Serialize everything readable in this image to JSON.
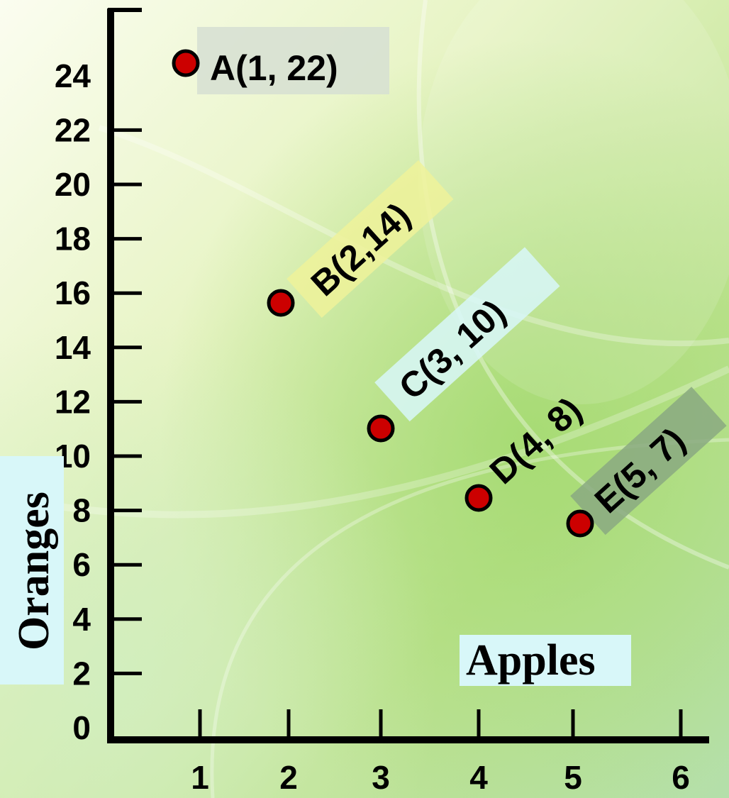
{
  "chart_data": {
    "type": "scatter",
    "xlabel": "Apples",
    "ylabel": "Oranges",
    "x_ticks": [
      1,
      2,
      3,
      4,
      5,
      6
    ],
    "y_ticks": [
      0,
      2,
      4,
      6,
      8,
      10,
      12,
      14,
      16,
      18,
      20,
      22,
      24
    ],
    "xlim": [
      0,
      6
    ],
    "ylim": [
      0,
      24
    ],
    "grid": false,
    "points": [
      {
        "label": "A(1, 22)",
        "x": 1,
        "y": 22
      },
      {
        "label": "B(2,14)",
        "x": 2,
        "y": 14
      },
      {
        "label": "C(3, 10)",
        "x": 3,
        "y": 10
      },
      {
        "label": "D(4, 8)",
        "x": 4,
        "y": 8
      },
      {
        "label": "E(5, 7)",
        "x": 5,
        "y": 7
      }
    ],
    "colors": {
      "marker_fill": "#cc0000",
      "marker_stroke": "#000000",
      "axis": "#000000",
      "label_a_bg": "#d6dfd2",
      "label_b_bg": "#eef29a",
      "label_c_bg": "#d8f7f9",
      "label_e_bg": "#8aa981",
      "axis_title_bg": "#d8f7f9"
    }
  }
}
